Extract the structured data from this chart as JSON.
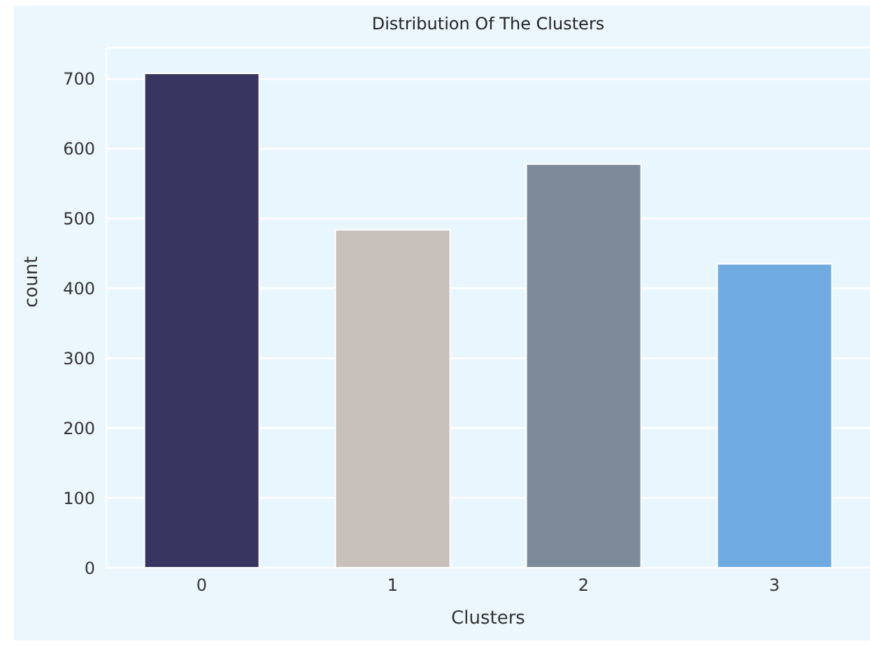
{
  "chart_data": {
    "type": "bar",
    "title": "Distribution Of The Clusters",
    "xlabel": "Clusters",
    "ylabel": "count",
    "categories": [
      "0",
      "1",
      "2",
      "3"
    ],
    "values": [
      708,
      484,
      578,
      435
    ],
    "colors": [
      "#383660",
      "#c7c0bb",
      "#7d8a99",
      "#6fabe1"
    ],
    "ylim": [
      0,
      745
    ],
    "yticks": [
      0,
      100,
      200,
      300,
      400,
      500,
      600,
      700
    ],
    "grid": "y"
  }
}
